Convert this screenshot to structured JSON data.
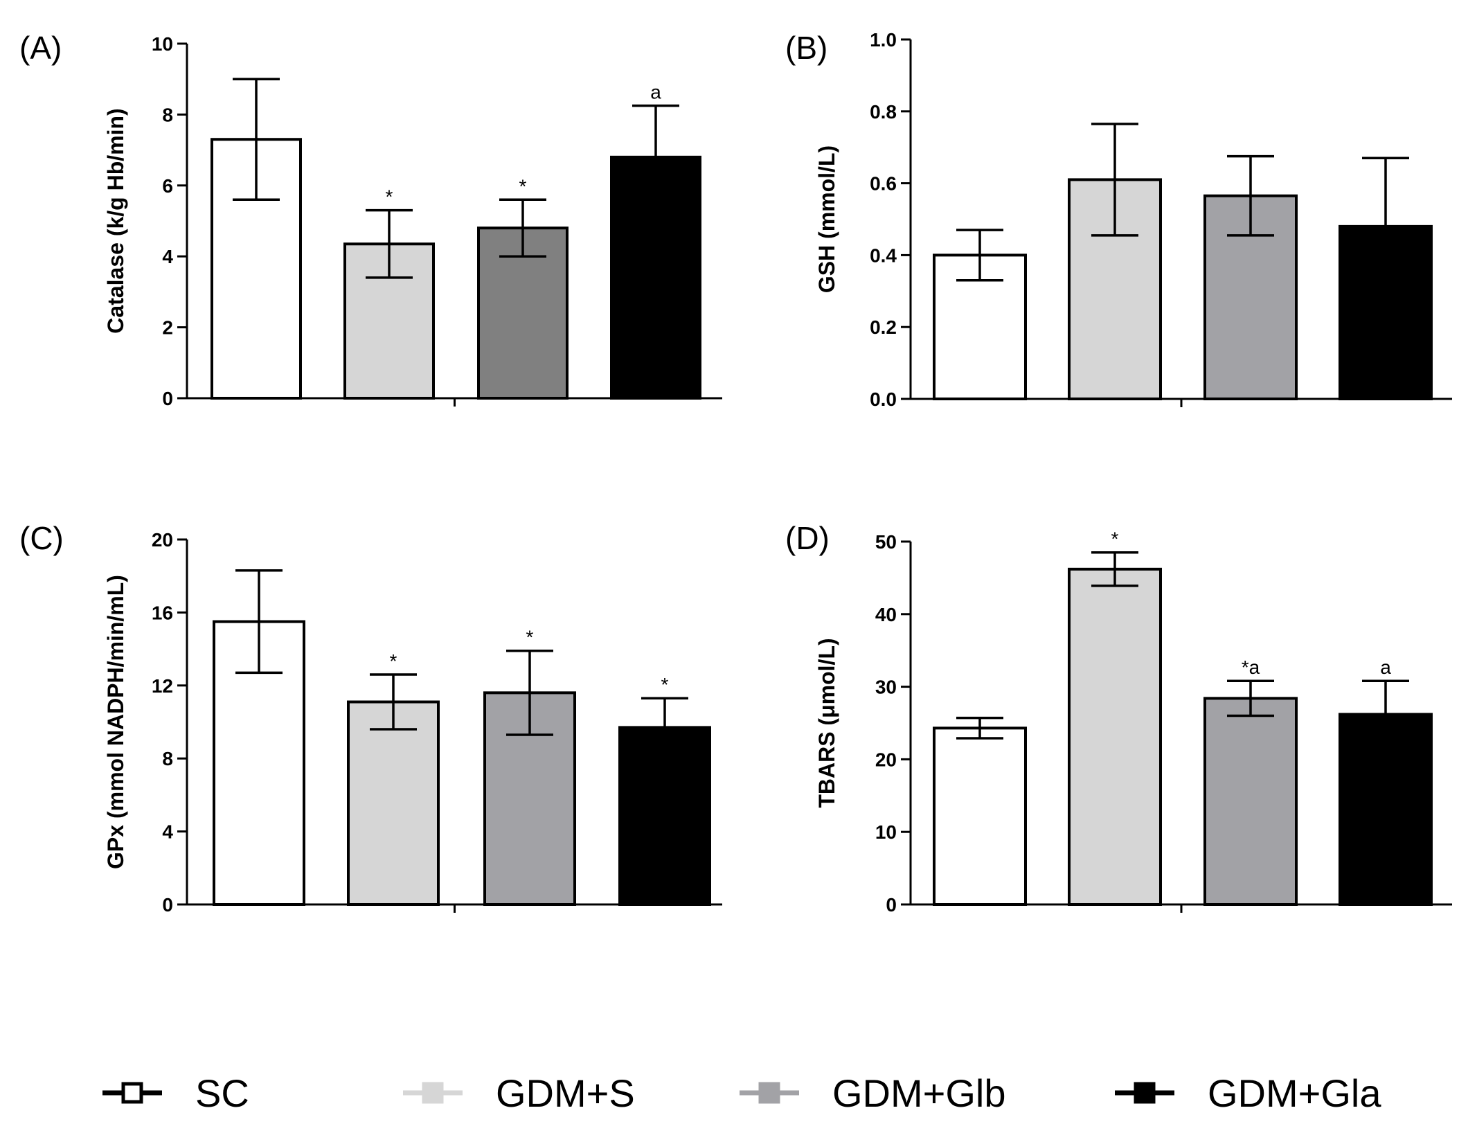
{
  "chart_data": [
    {
      "type": "bar",
      "panel": "(A)",
      "ylabel": "Catalase (k/g Hb/min)",
      "ylim": [
        0,
        10
      ],
      "yticks": [
        "0",
        "2",
        "4",
        "6",
        "8",
        "10"
      ],
      "categories": [
        "SC",
        "GDM+S",
        "GDM+Glb",
        "GDM+Gla"
      ],
      "values": [
        7.3,
        4.35,
        4.8,
        6.8
      ],
      "errors": [
        1.7,
        0.95,
        0.8,
        1.45
      ],
      "annotations": [
        "",
        "*",
        "*",
        "a"
      ]
    },
    {
      "type": "bar",
      "panel": "(B)",
      "ylabel": "GSH (mmol/L)",
      "ylim": [
        0,
        1.0
      ],
      "yticks": [
        "0.0",
        "0.2",
        "0.4",
        "0.6",
        "0.8",
        "1.0"
      ],
      "categories": [
        "SC",
        "GDM+S",
        "GDM+Glb",
        "GDM+Gla"
      ],
      "values": [
        0.4,
        0.61,
        0.565,
        0.48
      ],
      "errors": [
        0.07,
        0.155,
        0.11,
        0.19
      ],
      "annotations": [
        "",
        "",
        "",
        ""
      ]
    },
    {
      "type": "bar",
      "panel": "(C)",
      "ylabel": "GPx (mmol NADPH/min/mL)",
      "ylim": [
        0,
        20
      ],
      "yticks": [
        "0",
        "4",
        "8",
        "12",
        "16",
        "20"
      ],
      "categories": [
        "SC",
        "GDM+S",
        "GDM+Glb",
        "GDM+Gla"
      ],
      "values": [
        15.5,
        11.1,
        11.6,
        9.7
      ],
      "errors": [
        2.8,
        1.5,
        2.3,
        1.6
      ],
      "annotations": [
        "",
        "*",
        "*",
        "*"
      ]
    },
    {
      "type": "bar",
      "panel": "(D)",
      "ylabel": "TBARS (μmol/L)",
      "ylim": [
        0,
        50
      ],
      "yticks": [
        "0",
        "10",
        "20",
        "30",
        "40",
        "50"
      ],
      "categories": [
        "SC",
        "GDM+S",
        "GDM+Glb",
        "GDM+Gla"
      ],
      "values": [
        24.3,
        46.2,
        28.4,
        26.2
      ],
      "errors": [
        1.4,
        2.3,
        2.4,
        4.6
      ],
      "annotations": [
        "",
        "*",
        "*a",
        "a"
      ]
    }
  ],
  "legend": {
    "items": [
      {
        "label": "SC",
        "fill": "#ffffff",
        "line": "#000000",
        "edge": "#000000"
      },
      {
        "label": "GDM+S",
        "fill": "#d6d6d6",
        "line": "#d6d6d6",
        "edge": "#d6d6d6"
      },
      {
        "label": "GDM+Glb",
        "fill": "#a2a2a6",
        "line": "#a2a2a6",
        "edge": "#a2a2a6"
      },
      {
        "label": "GDM+Gla",
        "fill": "#000000",
        "line": "#000000",
        "edge": "#000000"
      }
    ]
  },
  "colors": {
    "panel_fills": [
      [
        "#ffffff",
        "#d6d6d6",
        "#808080",
        "#000000"
      ],
      [
        "#ffffff",
        "#d6d6d6",
        "#a2a2a6",
        "#000000"
      ],
      [
        "#ffffff",
        "#d6d6d6",
        "#a2a2a6",
        "#000000"
      ],
      [
        "#ffffff",
        "#d6d6d6",
        "#a2a2a6",
        "#000000"
      ]
    ]
  }
}
